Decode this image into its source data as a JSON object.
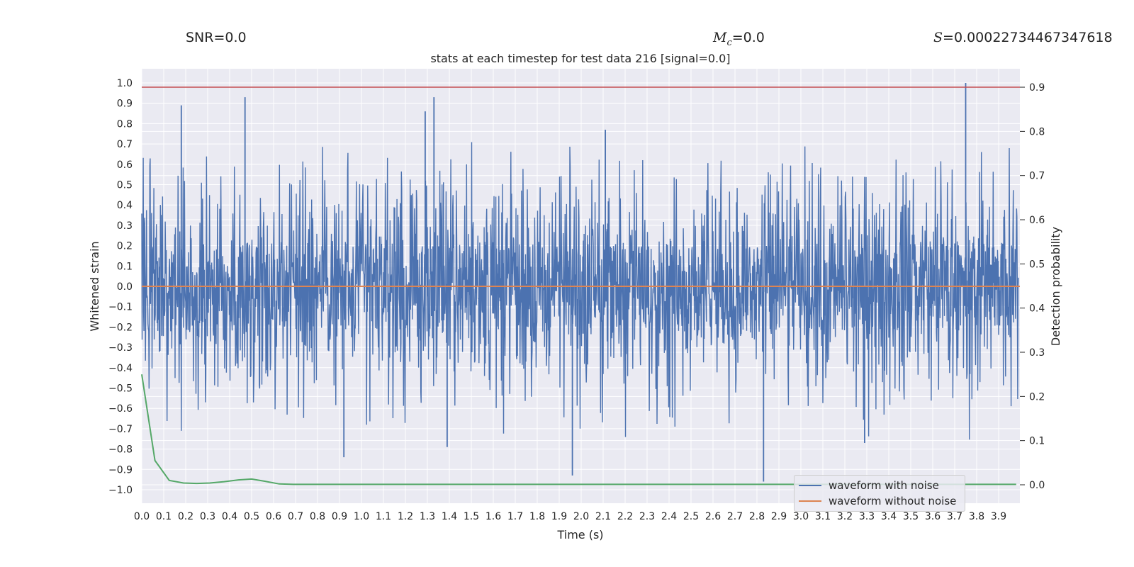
{
  "header": {
    "snr_label": "SNR=0.0",
    "mc_value": "=0.0",
    "s_value": "=0.00022734467347618"
  },
  "chart_data": {
    "type": "line",
    "title": "stats at each timestep for test data 216 [signal=0.0]",
    "xlabel": "Time (s)",
    "ylabel": "Whitened strain",
    "y2label": "Detection probability",
    "xlim": [
      0.0,
      4.0
    ],
    "ylim": [
      -1.0,
      1.0
    ],
    "y2lim": [
      -0.04,
      0.9
    ],
    "xticks": [
      "0.0",
      "0.1",
      "0.2",
      "0.3",
      "0.4",
      "0.5",
      "0.6",
      "0.7",
      "0.8",
      "0.9",
      "1.0",
      "1.1",
      "1.2",
      "1.3",
      "1.4",
      "1.5",
      "1.6",
      "1.7",
      "1.8",
      "1.9",
      "2.0",
      "2.1",
      "2.2",
      "2.3",
      "2.4",
      "2.5",
      "2.6",
      "2.7",
      "2.8",
      "2.9",
      "3.0",
      "3.1",
      "3.2",
      "3.3",
      "3.4",
      "3.5",
      "3.6",
      "3.7",
      "3.8",
      "3.9"
    ],
    "yticks": [
      "1.0",
      "0.9",
      "0.8",
      "0.7",
      "0.6",
      "0.5",
      "0.4",
      "0.3",
      "0.2",
      "0.1",
      "0.0",
      "-0.1",
      "-0.2",
      "-0.3",
      "-0.4",
      "-0.5",
      "-0.6",
      "-0.7",
      "-0.8",
      "-0.9",
      "-1.0"
    ],
    "y2ticks": [
      "0.9",
      "0.8",
      "0.7",
      "0.6",
      "0.5",
      "0.4",
      "0.3",
      "0.2",
      "0.1",
      "0.0"
    ],
    "grid": true,
    "legend_position": "lower-right",
    "series": [
      {
        "name": "waveform with noise",
        "color": "#4c72b0",
        "note": "dense noisy trace, amplitude roughly ±0.3 typical with spikes",
        "peaks": [
          {
            "x": 0.18,
            "y": 0.89
          },
          {
            "x": 0.47,
            "y": 0.93
          },
          {
            "x": 1.33,
            "y": 0.93
          },
          {
            "x": 1.29,
            "y": 0.86
          },
          {
            "x": 2.11,
            "y": 0.77
          },
          {
            "x": 3.75,
            "y": 1.0
          },
          {
            "x": 0.92,
            "y": -0.84
          },
          {
            "x": 1.96,
            "y": -0.93
          },
          {
            "x": 2.83,
            "y": -0.96
          },
          {
            "x": 3.29,
            "y": -0.77
          },
          {
            "x": 1.39,
            "y": -0.79
          }
        ]
      },
      {
        "name": "waveform without noise",
        "color": "#dd8452",
        "x": [
          0.0,
          4.0
        ],
        "y": [
          0.0,
          0.0
        ]
      },
      {
        "name": "",
        "color": "#c44e52",
        "axis": "right",
        "x": [
          0.0,
          4.0
        ],
        "y": [
          0.9,
          0.9
        ]
      },
      {
        "name": "",
        "color": "#55a868",
        "axis": "right",
        "x": [
          0.0,
          0.06,
          0.125,
          0.19,
          0.25,
          0.31,
          0.375,
          0.44,
          0.5,
          0.56,
          0.625,
          0.69,
          0.75,
          1.0,
          1.5,
          2.0,
          2.5,
          3.0,
          3.5,
          3.98
        ],
        "y": [
          0.25,
          0.055,
          0.01,
          0.004,
          0.003,
          0.004,
          0.007,
          0.011,
          0.013,
          0.008,
          0.002,
          0.001,
          0.001,
          0.001,
          0.001,
          0.001,
          0.001,
          0.001,
          0.001,
          0.001
        ]
      }
    ]
  }
}
